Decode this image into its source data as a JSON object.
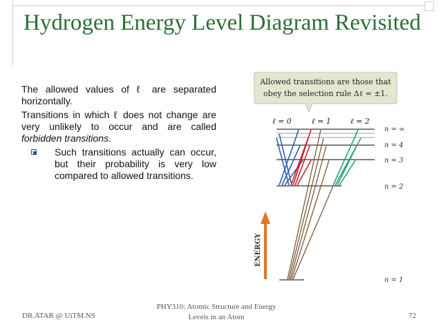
{
  "slide": {
    "title": "Hydrogen Energy Level Diagram Revisited",
    "para1": "The allowed values of ℓ are separated horizontally.",
    "para2_start": "Transitions in which ℓ does not change are very unlikely to occur and are called ",
    "para2_em": "forbidden transitions",
    "para2_end": ".",
    "bullet": "Such transitions actually can occur, but their probability is very low compared to allowed transitions."
  },
  "figure": {
    "callout_line1": "Allowed transitions are those that",
    "callout_line2": "obey the selection rule Δℓ = ±1.",
    "l_labels": [
      "ℓ = 0",
      "ℓ = 1",
      "ℓ = 2"
    ],
    "n_labels": [
      "n = ∞",
      "n = 4",
      "n = 3",
      "n = 2",
      "n = 1"
    ],
    "energy_label": "ENERGY",
    "colors": {
      "callout_bg": "#e4e6cf",
      "blue": "#2f5db0",
      "red": "#c8232f",
      "green": "#26a37a",
      "brown": "#7a5836",
      "arrow": "#e0761f"
    }
  },
  "footer": {
    "left": "DR.ATAR @ UiTM.NS",
    "mid_line1": "PHY310: Atomic Structure and Energy",
    "mid_line2": "Levels in an Atom",
    "page": "72"
  }
}
